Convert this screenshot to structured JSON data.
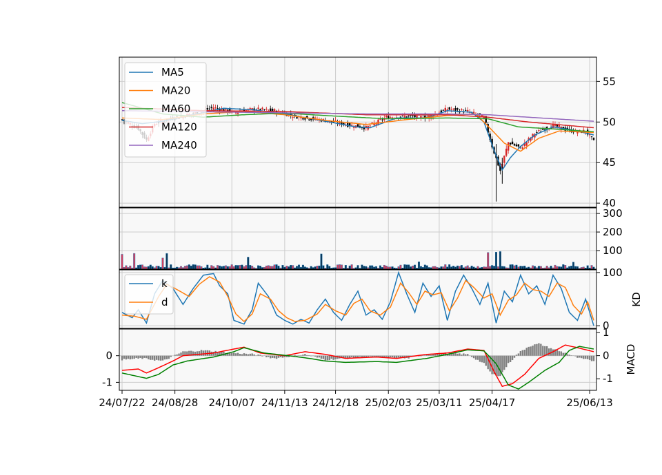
{
  "chart_data": {
    "type": "candlestick",
    "x_ticks": [
      "24/07/22",
      "24/08/28",
      "24/10/07",
      "24/11/13",
      "24/12/18",
      "25/02/03",
      "25/03/11",
      "25/04/17",
      "25/06/13"
    ],
    "colors": {
      "up": "#d62728",
      "down": "#000000",
      "ma5": "#1f77b4",
      "ma20": "#ff7f0e",
      "ma60": "#2ca02c",
      "ma120": "#d62728",
      "ma240": "#9467bd",
      "k": "#1f77b4",
      "d": "#ff7f0e",
      "dif": "#ff0000",
      "dea": "#008000",
      "hist": "#808080",
      "grid": "#cccccc",
      "panel_bg": "#f8f8f8"
    },
    "panels": [
      {
        "id": "price",
        "ylim": [
          39.5,
          58
        ],
        "ticks": [
          "40",
          "45",
          "50",
          "55"
        ],
        "legend": [
          "MA5",
          "MA20",
          "MA60",
          "MA120",
          "MA240"
        ],
        "legend_position": "upper-left",
        "close_anchors": [
          [
            0,
            50.3
          ],
          [
            8,
            49.2
          ],
          [
            12,
            47.8
          ],
          [
            16,
            49.8
          ],
          [
            25,
            50.5
          ],
          [
            35,
            51.0
          ],
          [
            45,
            51.8
          ],
          [
            55,
            51.2
          ],
          [
            65,
            51.6
          ],
          [
            75,
            51.4
          ],
          [
            85,
            50.7
          ],
          [
            100,
            50.2
          ],
          [
            110,
            49.7
          ],
          [
            120,
            49.3
          ],
          [
            130,
            50.6
          ],
          [
            140,
            50.7
          ],
          [
            150,
            50.6
          ],
          [
            160,
            51.6
          ],
          [
            170,
            51.3
          ],
          [
            178,
            50.6
          ],
          [
            182,
            47.0
          ],
          [
            186,
            44.0
          ],
          [
            190,
            47.5
          ],
          [
            196,
            46.8
          ],
          [
            203,
            48.6
          ],
          [
            212,
            49.6
          ],
          [
            218,
            49.1
          ],
          [
            224,
            48.8
          ],
          [
            228,
            48.9
          ],
          [
            232,
            47.6
          ]
        ],
        "ma5": [
          [
            0,
            50.2
          ],
          [
            10,
            49.8
          ],
          [
            20,
            50.1
          ],
          [
            35,
            50.9
          ],
          [
            50,
            51.7
          ],
          [
            65,
            51.5
          ],
          [
            80,
            51.0
          ],
          [
            100,
            50.1
          ],
          [
            115,
            49.4
          ],
          [
            122,
            49.3
          ],
          [
            135,
            50.5
          ],
          [
            150,
            50.5
          ],
          [
            160,
            51.4
          ],
          [
            172,
            51.2
          ],
          [
            178,
            50.0
          ],
          [
            183,
            46.5
          ],
          [
            187,
            44.1
          ],
          [
            191,
            45.6
          ],
          [
            196,
            47.0
          ],
          [
            203,
            48.4
          ],
          [
            212,
            49.4
          ],
          [
            222,
            49.0
          ],
          [
            232,
            48.4
          ]
        ],
        "ma20": [
          [
            0,
            50.5
          ],
          [
            20,
            50.3
          ],
          [
            40,
            51.0
          ],
          [
            60,
            51.3
          ],
          [
            80,
            50.9
          ],
          [
            100,
            50.2
          ],
          [
            120,
            49.7
          ],
          [
            140,
            50.3
          ],
          [
            160,
            50.8
          ],
          [
            174,
            51.0
          ],
          [
            180,
            49.5
          ],
          [
            188,
            47.4
          ],
          [
            196,
            46.4
          ],
          [
            205,
            48.0
          ],
          [
            215,
            48.9
          ],
          [
            232,
            48.7
          ]
        ],
        "ma60": [
          [
            0,
            52.4
          ],
          [
            20,
            51.0
          ],
          [
            40,
            50.6
          ],
          [
            60,
            50.9
          ],
          [
            80,
            51.1
          ],
          [
            100,
            50.8
          ],
          [
            130,
            50.4
          ],
          [
            160,
            50.5
          ],
          [
            180,
            50.4
          ],
          [
            195,
            49.4
          ],
          [
            215,
            49.1
          ],
          [
            232,
            48.8
          ]
        ],
        "ma120": [
          [
            0,
            51.8
          ],
          [
            40,
            51.4
          ],
          [
            80,
            51.3
          ],
          [
            120,
            50.9
          ],
          [
            160,
            50.9
          ],
          [
            180,
            50.6
          ],
          [
            200,
            50.0
          ],
          [
            232,
            49.3
          ]
        ],
        "ma240": [
          [
            0,
            51.4
          ],
          [
            60,
            51.2
          ],
          [
            120,
            51.0
          ],
          [
            160,
            51.0
          ],
          [
            180,
            50.9
          ],
          [
            232,
            50.1
          ]
        ]
      },
      {
        "id": "volume",
        "ylim": [
          0,
          330
        ],
        "ticks": [
          "100",
          "200",
          "300"
        ],
        "spikes": [
          [
            0,
            80
          ],
          [
            6,
            85
          ],
          [
            20,
            60
          ],
          [
            22,
            85
          ],
          [
            62,
            65
          ],
          [
            98,
            82
          ],
          [
            146,
            40
          ],
          [
            180,
            90
          ],
          [
            184,
            92
          ],
          [
            186,
            95
          ],
          [
            222,
            38
          ]
        ]
      },
      {
        "id": "kd",
        "ylim": [
          -5,
          105
        ],
        "ticks": [
          "0",
          "100"
        ],
        "ylabel": "KD",
        "legend": [
          "k",
          "d"
        ],
        "legend_position": "upper-left",
        "k_anchors": [
          [
            0,
            25
          ],
          [
            5,
            15
          ],
          [
            8,
            30
          ],
          [
            12,
            5
          ],
          [
            16,
            60
          ],
          [
            20,
            85
          ],
          [
            25,
            70
          ],
          [
            30,
            40
          ],
          [
            35,
            70
          ],
          [
            40,
            95
          ],
          [
            45,
            98
          ],
          [
            48,
            75
          ],
          [
            52,
            60
          ],
          [
            55,
            10
          ],
          [
            60,
            3
          ],
          [
            64,
            30
          ],
          [
            67,
            80
          ],
          [
            72,
            55
          ],
          [
            76,
            20
          ],
          [
            80,
            10
          ],
          [
            84,
            3
          ],
          [
            88,
            12
          ],
          [
            92,
            5
          ],
          [
            96,
            30
          ],
          [
            100,
            50
          ],
          [
            104,
            25
          ],
          [
            108,
            10
          ],
          [
            112,
            40
          ],
          [
            116,
            65
          ],
          [
            120,
            20
          ],
          [
            124,
            30
          ],
          [
            128,
            12
          ],
          [
            132,
            45
          ],
          [
            136,
            100
          ],
          [
            140,
            60
          ],
          [
            144,
            25
          ],
          [
            148,
            80
          ],
          [
            152,
            55
          ],
          [
            156,
            75
          ],
          [
            160,
            10
          ],
          [
            164,
            65
          ],
          [
            168,
            95
          ],
          [
            172,
            70
          ],
          [
            176,
            40
          ],
          [
            180,
            80
          ],
          [
            184,
            5
          ],
          [
            188,
            65
          ],
          [
            192,
            45
          ],
          [
            196,
            95
          ],
          [
            200,
            60
          ],
          [
            204,
            75
          ],
          [
            208,
            40
          ],
          [
            212,
            95
          ],
          [
            216,
            70
          ],
          [
            220,
            25
          ],
          [
            224,
            10
          ],
          [
            228,
            50
          ],
          [
            232,
            0
          ]
        ],
        "d_anchors": [
          [
            0,
            20
          ],
          [
            6,
            18
          ],
          [
            12,
            12
          ],
          [
            18,
            55
          ],
          [
            22,
            78
          ],
          [
            27,
            68
          ],
          [
            33,
            55
          ],
          [
            38,
            78
          ],
          [
            43,
            92
          ],
          [
            48,
            82
          ],
          [
            52,
            55
          ],
          [
            56,
            22
          ],
          [
            60,
            8
          ],
          [
            64,
            22
          ],
          [
            68,
            60
          ],
          [
            73,
            50
          ],
          [
            77,
            28
          ],
          [
            81,
            15
          ],
          [
            85,
            8
          ],
          [
            90,
            10
          ],
          [
            96,
            22
          ],
          [
            100,
            40
          ],
          [
            105,
            28
          ],
          [
            110,
            20
          ],
          [
            114,
            42
          ],
          [
            118,
            50
          ],
          [
            122,
            28
          ],
          [
            127,
            20
          ],
          [
            132,
            35
          ],
          [
            137,
            80
          ],
          [
            141,
            62
          ],
          [
            145,
            40
          ],
          [
            149,
            65
          ],
          [
            153,
            58
          ],
          [
            157,
            62
          ],
          [
            161,
            28
          ],
          [
            165,
            52
          ],
          [
            169,
            85
          ],
          [
            173,
            72
          ],
          [
            178,
            52
          ],
          [
            182,
            60
          ],
          [
            186,
            20
          ],
          [
            190,
            48
          ],
          [
            194,
            58
          ],
          [
            198,
            80
          ],
          [
            202,
            68
          ],
          [
            206,
            65
          ],
          [
            210,
            55
          ],
          [
            214,
            80
          ],
          [
            218,
            72
          ],
          [
            222,
            38
          ],
          [
            226,
            22
          ],
          [
            229,
            45
          ],
          [
            232,
            10
          ]
        ]
      },
      {
        "id": "macd",
        "ylim": [
          -1.3,
          1.0
        ],
        "ticks_left": [
          "-1",
          "0"
        ],
        "ticks_right": [
          "-1",
          "0",
          "1"
        ],
        "ylabel": "MACD",
        "dif": [
          [
            0,
            -0.55
          ],
          [
            8,
            -0.5
          ],
          [
            12,
            -0.65
          ],
          [
            18,
            -0.45
          ],
          [
            25,
            -0.2
          ],
          [
            30,
            0.0
          ],
          [
            45,
            0.1
          ],
          [
            55,
            0.25
          ],
          [
            60,
            0.32
          ],
          [
            68,
            0.1
          ],
          [
            80,
            0.0
          ],
          [
            90,
            0.15
          ],
          [
            100,
            0.05
          ],
          [
            110,
            -0.1
          ],
          [
            125,
            -0.05
          ],
          [
            135,
            -0.1
          ],
          [
            150,
            0.05
          ],
          [
            160,
            0.1
          ],
          [
            170,
            0.25
          ],
          [
            178,
            0.2
          ],
          [
            183,
            -0.6
          ],
          [
            187,
            -1.15
          ],
          [
            192,
            -1.05
          ],
          [
            198,
            -0.7
          ],
          [
            205,
            -0.1
          ],
          [
            212,
            0.15
          ],
          [
            218,
            0.4
          ],
          [
            224,
            0.3
          ],
          [
            232,
            0.15
          ]
        ],
        "dea": [
          [
            0,
            -0.65
          ],
          [
            6,
            -0.75
          ],
          [
            12,
            -0.85
          ],
          [
            18,
            -0.7
          ],
          [
            25,
            -0.35
          ],
          [
            32,
            -0.2
          ],
          [
            45,
            -0.05
          ],
          [
            55,
            0.15
          ],
          [
            60,
            0.3
          ],
          [
            70,
            0.1
          ],
          [
            82,
            0.0
          ],
          [
            92,
            -0.1
          ],
          [
            100,
            -0.2
          ],
          [
            110,
            -0.25
          ],
          [
            125,
            -0.22
          ],
          [
            135,
            -0.25
          ],
          [
            150,
            -0.1
          ],
          [
            160,
            0.05
          ],
          [
            170,
            0.22
          ],
          [
            178,
            0.18
          ],
          [
            184,
            -0.3
          ],
          [
            190,
            -1.1
          ],
          [
            195,
            -1.25
          ],
          [
            200,
            -1.0
          ],
          [
            208,
            -0.55
          ],
          [
            215,
            -0.25
          ],
          [
            220,
            0.2
          ],
          [
            225,
            0.35
          ],
          [
            232,
            0.25
          ]
        ],
        "hist": [
          [
            0,
            -0.15
          ],
          [
            10,
            -0.1
          ],
          [
            20,
            -0.2
          ],
          [
            30,
            0.15
          ],
          [
            40,
            0.2
          ],
          [
            55,
            0.1
          ],
          [
            65,
            0.05
          ],
          [
            75,
            -0.1
          ],
          [
            90,
            0.05
          ],
          [
            100,
            -0.15
          ],
          [
            120,
            -0.05
          ],
          [
            140,
            -0.1
          ],
          [
            150,
            0.05
          ],
          [
            160,
            0.1
          ],
          [
            170,
            0.05
          ],
          [
            178,
            -0.3
          ],
          [
            182,
            -0.7
          ],
          [
            186,
            -0.75
          ],
          [
            190,
            -0.3
          ],
          [
            195,
            0.1
          ],
          [
            200,
            0.35
          ],
          [
            205,
            0.45
          ],
          [
            210,
            0.3
          ],
          [
            218,
            0.1
          ],
          [
            225,
            -0.1
          ],
          [
            232,
            -0.2
          ]
        ]
      }
    ]
  }
}
